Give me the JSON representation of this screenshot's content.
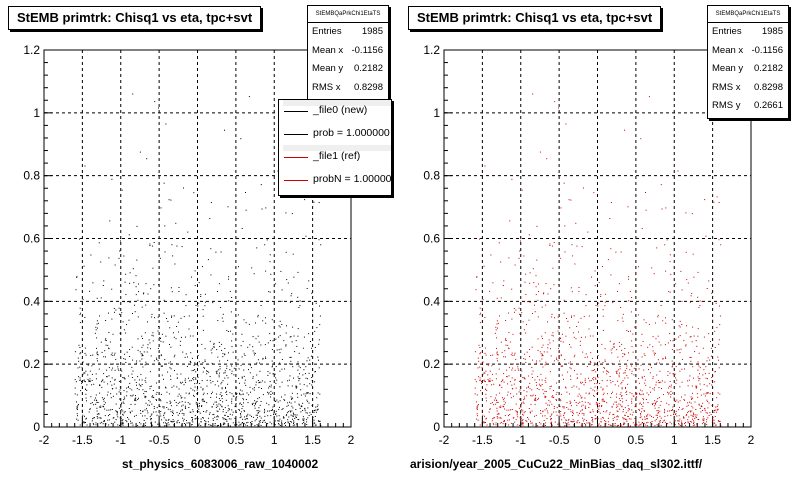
{
  "colors": {
    "new": "#000000",
    "ref": "#cc0000",
    "grid": "#000000"
  },
  "chart_data": [
    {
      "type": "scatter",
      "title": "StEMB primtrk: Chisq1 vs eta, tpc+svt",
      "xlabel": "st_physics_6083006_raw_1040002",
      "ylabel": "",
      "xlim": [
        -2,
        2
      ],
      "ylim": [
        0,
        1.2
      ],
      "x_ticks": [
        "-2",
        "-1.5",
        "-1",
        "-0.5",
        "0",
        "0.5",
        "1",
        "1.5",
        "2"
      ],
      "y_ticks": [
        "0",
        "0.2",
        "0.4",
        "0.6",
        "0.8",
        "1",
        "1.2"
      ],
      "grid": true,
      "point_color": "#000000",
      "stats": {
        "name": "StEMBQaPrkChi1EtaTS",
        "entries": "1985",
        "mean_x": "-0.1156",
        "mean_y": "0.2182",
        "rms_x": "0.8298"
      },
      "stats_labels": {
        "entries": "Entries",
        "mean_x": "Mean x",
        "mean_y": "Mean y",
        "rms_x": "RMS x"
      },
      "legend": [
        {
          "label": "_file0 (new)",
          "color": "#000000"
        },
        {
          "label": "prob = 1.000000",
          "color": "#000000"
        },
        {
          "label": "_file1 (ref)",
          "color": "#cc0000"
        },
        {
          "label": "probN = 1.000000",
          "color": "#cc0000"
        }
      ]
    },
    {
      "type": "scatter",
      "title": "StEMB primtrk: Chisq1 vs eta, tpc+svt",
      "xlabel": "arision/year_2005_CuCu22_MinBias_daq_sl302.ittf/",
      "ylabel": "",
      "xlim": [
        -2,
        2
      ],
      "ylim": [
        0,
        1.2
      ],
      "x_ticks": [
        "-2",
        "-1.5",
        "-1",
        "-0.5",
        "0",
        "0.5",
        "1",
        "1.5",
        "2"
      ],
      "y_ticks": [
        "0",
        "0.2",
        "0.4",
        "0.6",
        "0.8",
        "1",
        "1.2"
      ],
      "grid": true,
      "point_color": "#cc0000",
      "stats": {
        "name": "StEMBQaPrkChi1EtaTS",
        "entries": "1985",
        "mean_x": "-0.1156",
        "mean_y": "0.2182",
        "rms_x": "0.8298",
        "rms_y": "0.2661"
      },
      "stats_labels": {
        "entries": "Entries",
        "mean_x": "Mean x",
        "mean_y": "Mean y",
        "rms_x": "RMS x",
        "rms_y": "RMS y"
      }
    }
  ]
}
